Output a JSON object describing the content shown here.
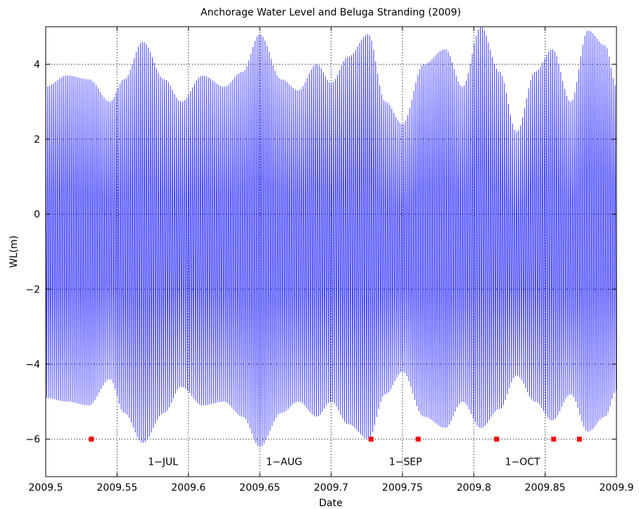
{
  "chart_data": {
    "type": "line",
    "title": "Anchorage Water Level and Beluga Stranding (2009)",
    "xlabel": "Date",
    "ylabel": "WL(m)",
    "xlim": [
      2009.5,
      2009.9
    ],
    "ylim": [
      -7,
      5
    ],
    "xticks": [
      2009.5,
      2009.55,
      2009.6,
      2009.65,
      2009.7,
      2009.75,
      2009.8,
      2009.85,
      2009.9
    ],
    "xtick_labels": [
      "2009.5",
      "2009.55",
      "2009.6",
      "2009.65",
      "2009.7",
      "2009.75",
      "2009.8",
      "2009.85",
      "2009.9"
    ],
    "yticks": [
      -6,
      -4,
      -2,
      0,
      2,
      4
    ],
    "ytick_labels": [
      "−6",
      "−4",
      "−2",
      "0",
      "2",
      "4"
    ],
    "grid": true,
    "grid_style": "dotted",
    "water_level": {
      "color": "#0000ff",
      "start": 2009.5,
      "end": 2009.9,
      "envelope": [
        {
          "x": 2009.5,
          "max": 3.4,
          "min": -4.9
        },
        {
          "x": 2009.515,
          "max": 3.7,
          "min": -5.0
        },
        {
          "x": 2009.53,
          "max": 3.6,
          "min": -5.1
        },
        {
          "x": 2009.545,
          "max": 3.0,
          "min": -4.4
        },
        {
          "x": 2009.555,
          "max": 3.6,
          "min": -5.3
        },
        {
          "x": 2009.568,
          "max": 4.6,
          "min": -6.1
        },
        {
          "x": 2009.583,
          "max": 3.6,
          "min": -5.3
        },
        {
          "x": 2009.595,
          "max": 3.0,
          "min": -4.6
        },
        {
          "x": 2009.61,
          "max": 3.7,
          "min": -5.1
        },
        {
          "x": 2009.625,
          "max": 3.4,
          "min": -5.0
        },
        {
          "x": 2009.638,
          "max": 3.8,
          "min": -5.4
        },
        {
          "x": 2009.65,
          "max": 4.8,
          "min": -6.2
        },
        {
          "x": 2009.665,
          "max": 3.6,
          "min": -5.3
        },
        {
          "x": 2009.677,
          "max": 3.3,
          "min": -5.0
        },
        {
          "x": 2009.69,
          "max": 4.0,
          "min": -5.4
        },
        {
          "x": 2009.7,
          "max": 3.5,
          "min": -5.0
        },
        {
          "x": 2009.712,
          "max": 4.2,
          "min": -5.6
        },
        {
          "x": 2009.726,
          "max": 4.8,
          "min": -6.0
        },
        {
          "x": 2009.738,
          "max": 3.0,
          "min": -4.8
        },
        {
          "x": 2009.75,
          "max": 2.4,
          "min": -4.2
        },
        {
          "x": 2009.765,
          "max": 4.0,
          "min": -5.4
        },
        {
          "x": 2009.78,
          "max": 4.4,
          "min": -5.7
        },
        {
          "x": 2009.792,
          "max": 3.4,
          "min": -5.0
        },
        {
          "x": 2009.805,
          "max": 5.0,
          "min": -5.7
        },
        {
          "x": 2009.818,
          "max": 3.8,
          "min": -5.2
        },
        {
          "x": 2009.83,
          "max": 2.2,
          "min": -4.3
        },
        {
          "x": 2009.843,
          "max": 3.8,
          "min": -5.0
        },
        {
          "x": 2009.855,
          "max": 4.4,
          "min": -5.5
        },
        {
          "x": 2009.868,
          "max": 3.0,
          "min": -4.8
        },
        {
          "x": 2009.88,
          "max": 4.9,
          "min": -5.8
        },
        {
          "x": 2009.892,
          "max": 4.5,
          "min": -5.4
        },
        {
          "x": 2009.9,
          "max": 3.4,
          "min": -4.7
        }
      ]
    },
    "strandings": {
      "color": "#ff0000",
      "y": -6,
      "x": [
        2009.532,
        2009.728,
        2009.761,
        2009.816,
        2009.856,
        2009.874
      ]
    },
    "annotations": [
      {
        "text": "1−JUL",
        "x": 2009.5822,
        "y": -6.6
      },
      {
        "text": "1−AUG",
        "x": 2009.6671,
        "y": -6.6
      },
      {
        "text": "1−SEP",
        "x": 2009.7521,
        "y": -6.6
      },
      {
        "text": "1−OCT",
        "x": 2009.8342,
        "y": -6.6
      }
    ]
  }
}
